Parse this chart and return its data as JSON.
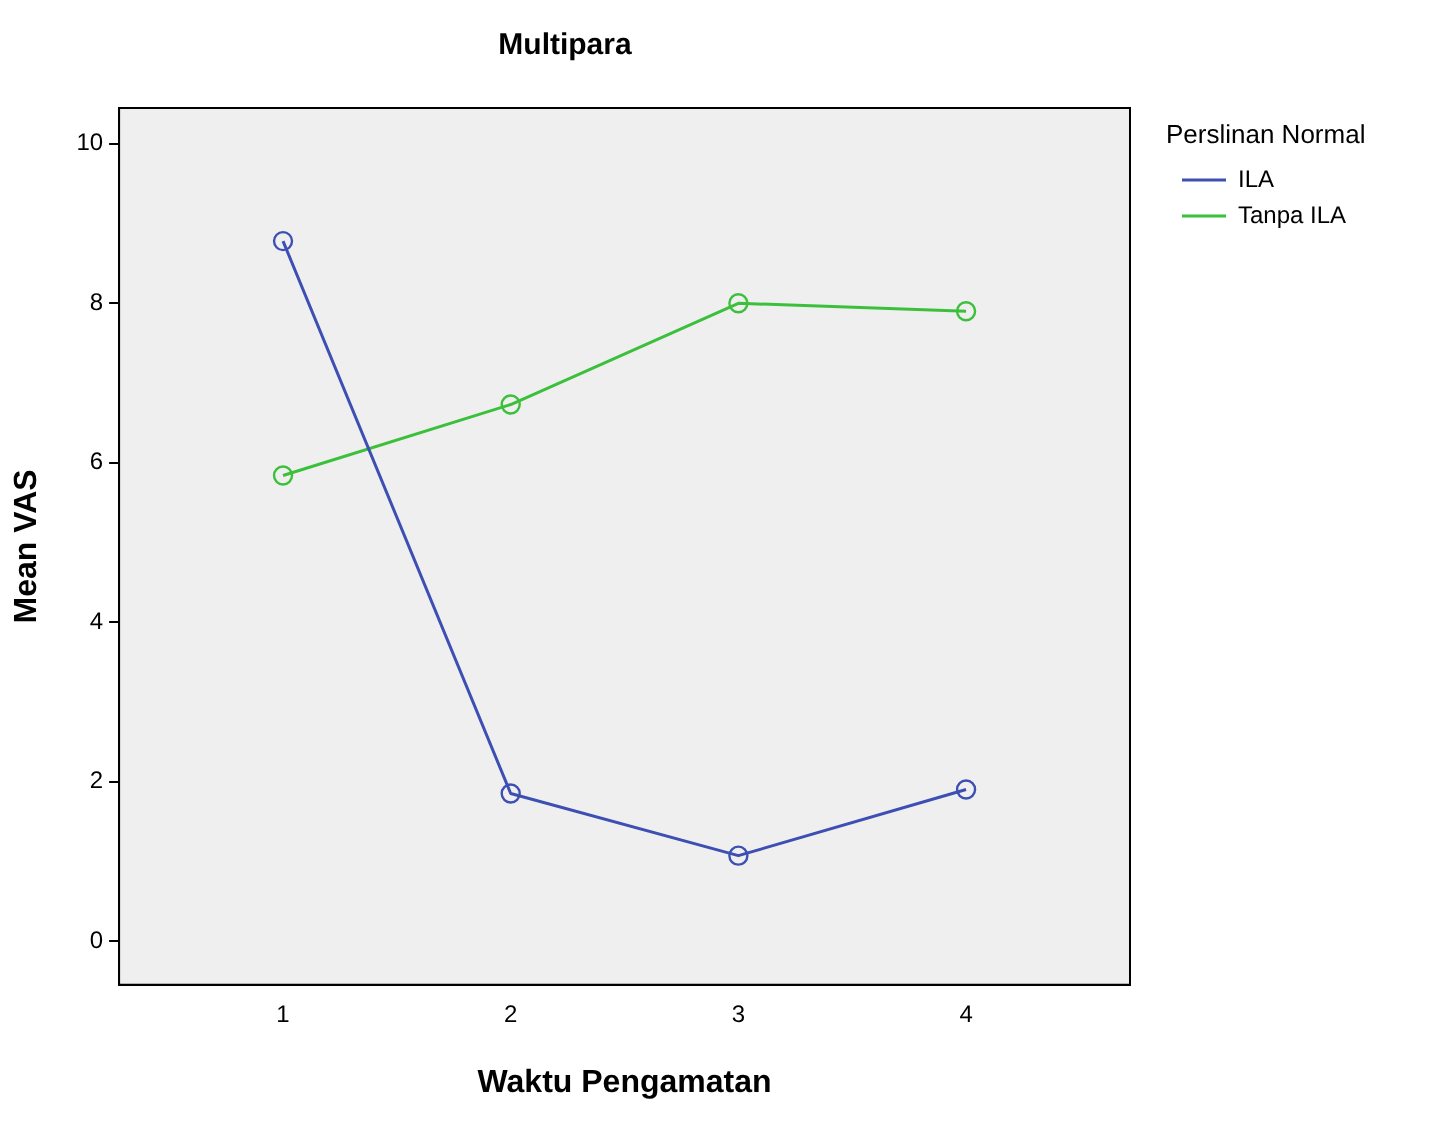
{
  "chart_data": {
    "type": "line",
    "title": "Multipara",
    "xlabel": "Waktu Pengamatan",
    "ylabel": "Mean VAS",
    "legend_title": "Perslinan Normal",
    "x": [
      1,
      2,
      3,
      4
    ],
    "series": [
      {
        "name": "ILA",
        "color": "#3e4fb4",
        "values": [
          8.78,
          1.85,
          1.07,
          1.9
        ]
      },
      {
        "name": "Tanpa ILA",
        "color": "#3cc03c",
        "values": [
          5.84,
          6.73,
          8.0,
          7.9
        ]
      }
    ],
    "xlim": [
      0.28,
      4.72
    ],
    "xticks": [
      1,
      2,
      3,
      4
    ],
    "ylim": [
      -0.55,
      10.45
    ],
    "yticks": [
      0,
      2,
      4,
      6,
      8,
      10
    ],
    "grid": false,
    "legend": "right",
    "marker": "circle",
    "line_style": "solid"
  }
}
